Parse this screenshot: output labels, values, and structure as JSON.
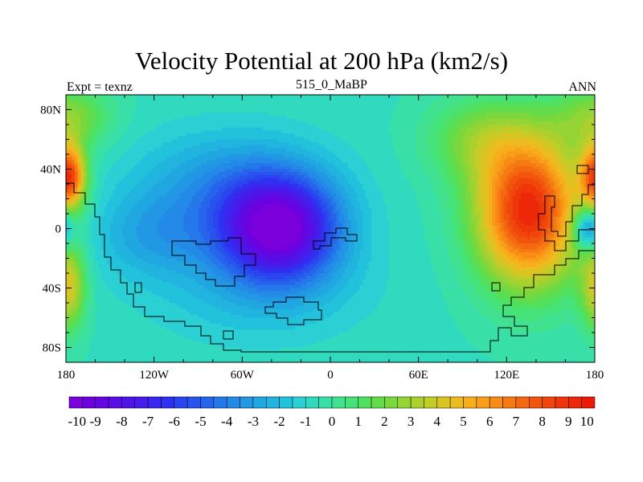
{
  "title": "Velocity Potential at 200 hPa (km2/s)",
  "subtitle_left": "Expt = texnz",
  "subtitle_center": "515_0_MaBP",
  "subtitle_right": "ANN",
  "chart_data": {
    "type": "heatmap",
    "title": "Velocity Potential at 200 hPa (km2/s)",
    "variable": "velocity potential",
    "level": "200 hPa",
    "units": "km2/s",
    "x_range": [
      -180,
      180
    ],
    "y_range": [
      -90,
      90
    ],
    "x_ticks": [
      {
        "value": -180,
        "label": "180"
      },
      {
        "value": -120,
        "label": "120W"
      },
      {
        "value": -60,
        "label": "60W"
      },
      {
        "value": 0,
        "label": "0"
      },
      {
        "value": 60,
        "label": "60E"
      },
      {
        "value": 120,
        "label": "120E"
      },
      {
        "value": 180,
        "label": "180"
      }
    ],
    "y_ticks": [
      {
        "value": 80,
        "label": "80N"
      },
      {
        "value": 40,
        "label": "40N"
      },
      {
        "value": 0,
        "label": "0"
      },
      {
        "value": -40,
        "label": "40S"
      },
      {
        "value": -80,
        "label": "80S"
      }
    ],
    "field_extrema": [
      {
        "name": "minimum-center",
        "lon": -35,
        "lat": 0,
        "value": -9.5
      },
      {
        "name": "maximum-west-pacific",
        "lon": 135,
        "lat": 12,
        "value": 9.2
      },
      {
        "name": "maximum-east-pacific-north",
        "lon": -180,
        "lat": 35,
        "value": 7.0
      },
      {
        "name": "local-min-east-pacific-equator",
        "lon": 178,
        "lat": 0,
        "value": 3.0
      }
    ],
    "colorbar": {
      "min": -10,
      "max": 10,
      "step": 0.5,
      "labels": [
        -10,
        -9,
        -8,
        -7,
        -6,
        -5,
        -4,
        -3,
        -2,
        -1,
        0,
        1,
        2,
        3,
        4,
        5,
        6,
        7,
        8,
        9,
        10
      ],
      "colors": [
        "#7a00dc",
        "#6e00e0",
        "#6406e2",
        "#5a0ce6",
        "#4f14e8",
        "#461cec",
        "#3a26ef",
        "#3030f0",
        "#2a44f0",
        "#2854ee",
        "#2664ec",
        "#2478ea",
        "#248ae8",
        "#2298e4",
        "#20a6e0",
        "#20b4de",
        "#22c2dc",
        "#2ad0d4",
        "#30dabe",
        "#38e0a8",
        "#40e292",
        "#46e27a",
        "#50e060",
        "#62dc4a",
        "#7ad83c",
        "#94d434",
        "#acd02e",
        "#c4cc28",
        "#dac424",
        "#ecbc20",
        "#f6ae1c",
        "#f89e18",
        "#f88c14",
        "#f67a12",
        "#f46810",
        "#f2560e",
        "#f0460c",
        "#ee360a",
        "#ec2808",
        "#ea1a06"
      ]
    }
  }
}
